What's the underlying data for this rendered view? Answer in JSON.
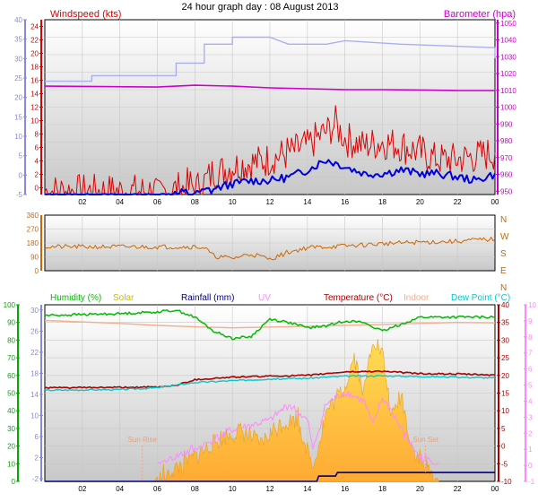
{
  "title": "24 hour graph day : 08 August 2013",
  "colors": {
    "wind": "#dd0000",
    "wind_blue": "#0000dd",
    "baro": "#cc00cc",
    "baro_light": "#aab0ee",
    "dir": "#cc6600",
    "humidity": "#00bb00",
    "solar": "#ccbb00",
    "rain": "#000080",
    "uv": "#ff88ff",
    "temp": "#aa0000",
    "indoor": "#f0b090",
    "dew": "#00cccc",
    "left_axis_1": "#8888dd",
    "left_axis_3": "#00aa00"
  },
  "chart_data": [
    {
      "type": "line",
      "name": "wind-barometer",
      "x_ticks": [
        "02",
        "04",
        "06",
        "08",
        "10",
        "12",
        "14",
        "16",
        "18",
        "20",
        "22",
        "00"
      ],
      "axes": {
        "left_outer": {
          "ticks": [
            -5,
            0,
            5,
            10,
            15,
            20,
            25,
            30,
            35,
            40
          ]
        },
        "left_inner": {
          "label": "Windspeed (kts)",
          "ticks": [
            0,
            2,
            4,
            6,
            8,
            10,
            12,
            14,
            16,
            18,
            20,
            22,
            24
          ]
        },
        "right": {
          "label": "Barometer (hpa)",
          "ticks": [
            950,
            960,
            970,
            980,
            990,
            1000,
            1010,
            1020,
            1030,
            1040,
            1050
          ]
        }
      },
      "series": [
        {
          "name": "Windspeed",
          "points": [
            [
              0,
              0.5
            ],
            [
              2,
              0.5
            ],
            [
              4,
              0.5
            ],
            [
              6,
              0.5
            ],
            [
              8,
              1
            ],
            [
              8.5,
              2
            ],
            [
              9,
              3
            ],
            [
              10,
              4
            ],
            [
              11,
              4.5
            ],
            [
              12,
              5
            ],
            [
              13,
              6
            ],
            [
              14,
              7
            ],
            [
              14.5,
              8
            ],
            [
              15,
              9
            ],
            [
              15.5,
              10
            ],
            [
              16,
              8
            ],
            [
              17,
              7
            ],
            [
              18,
              7.5
            ],
            [
              19,
              7
            ],
            [
              20,
              6
            ],
            [
              21,
              5
            ],
            [
              22,
              5
            ],
            [
              23,
              5.5
            ],
            [
              24,
              6
            ]
          ]
        },
        {
          "name": "Wind average",
          "points": [
            [
              0,
              0
            ],
            [
              6,
              0
            ],
            [
              8,
              0.2
            ],
            [
              9,
              0.8
            ],
            [
              10,
              1.5
            ],
            [
              11,
              2
            ],
            [
              12,
              2
            ],
            [
              13,
              2.5
            ],
            [
              14,
              3.5
            ],
            [
              15,
              5
            ],
            [
              16,
              4
            ],
            [
              17,
              3
            ],
            [
              18,
              3
            ],
            [
              19,
              3.5
            ],
            [
              20,
              3
            ],
            [
              21,
              3
            ],
            [
              22,
              2.5
            ],
            [
              23,
              2
            ],
            [
              24,
              3
            ]
          ]
        },
        {
          "name": "Barometer",
          "points": [
            [
              0,
              1012
            ],
            [
              6,
              1011.5
            ],
            [
              8,
              1012.5
            ],
            [
              10,
              1012
            ],
            [
              12,
              1011
            ],
            [
              14,
              1010.5
            ],
            [
              16,
              1010
            ],
            [
              18,
              1010
            ],
            [
              20,
              1009.8
            ],
            [
              22,
              1009.5
            ],
            [
              24,
              1009.5
            ]
          ]
        },
        {
          "name": "Barometer light",
          "points": [
            [
              0,
              16.2
            ],
            [
              2.5,
              16.2
            ],
            [
              2.5,
              17
            ],
            [
              7,
              17
            ],
            [
              7,
              18.8
            ],
            [
              8.5,
              18.8
            ],
            [
              8.5,
              21.5
            ],
            [
              10,
              21.5
            ],
            [
              10,
              22.5
            ],
            [
              12,
              22.5
            ],
            [
              13,
              21.5
            ],
            [
              15,
              21.5
            ],
            [
              16,
              22
            ],
            [
              19,
              21.5
            ],
            [
              24,
              21
            ],
            [
              24,
              19.5
            ]
          ]
        }
      ]
    },
    {
      "type": "line",
      "name": "wind-direction",
      "axes": {
        "left": {
          "ticks": [
            0,
            90,
            180,
            270,
            360
          ]
        },
        "right": {
          "labels": [
            "N",
            "W",
            "S",
            "E",
            "N"
          ]
        }
      },
      "series": [
        {
          "name": "Direction",
          "points": [
            [
              0,
              155
            ],
            [
              8,
              155
            ],
            [
              8.5,
              150
            ],
            [
              9,
              95
            ],
            [
              10,
              80
            ],
            [
              11,
              110
            ],
            [
              12,
              75
            ],
            [
              13,
              120
            ],
            [
              14,
              150
            ],
            [
              16,
              160
            ],
            [
              18,
              175
            ],
            [
              20,
              185
            ],
            [
              22,
              190
            ],
            [
              23,
              200
            ],
            [
              24,
              205
            ]
          ]
        }
      ]
    },
    {
      "type": "line",
      "name": "humidity-temperature-solar",
      "legend": {
        "humidity": "Humidity  (%)",
        "solar": "Solar",
        "rainfall": "Rainfall (mm)",
        "uv": "UV",
        "temperature": "Temperature (°C)",
        "indoor": "Indoor",
        "dew": "Dew Point (°C)"
      },
      "axes": {
        "left_outer": {
          "ticks": [
            0,
            10,
            20,
            30,
            40,
            50,
            60,
            70,
            80,
            90,
            100
          ]
        },
        "left_inner": {
          "ticks": [
            -2,
            2,
            6,
            10,
            14,
            18,
            22,
            26,
            30
          ]
        },
        "right_inner": {
          "ticks": [
            -10,
            -5,
            0,
            5,
            10,
            15,
            20,
            25,
            30,
            35,
            40
          ]
        },
        "right_outer": {
          "ticks": [
            -1,
            0,
            1,
            2,
            3,
            4,
            5,
            6,
            7,
            8,
            9,
            10
          ]
        }
      },
      "annotations": [
        {
          "text": "Sun Rise",
          "x": 5.2
        },
        {
          "text": "Sun Set",
          "x": 20.3
        }
      ],
      "series": [
        {
          "name": "Humidity",
          "points": [
            [
              0,
              94
            ],
            [
              4,
              95
            ],
            [
              6,
              96
            ],
            [
              7,
              97
            ],
            [
              8,
              93
            ],
            [
              9,
              85
            ],
            [
              10,
              81
            ],
            [
              11,
              82
            ],
            [
              12,
              92
            ],
            [
              13,
              90
            ],
            [
              14,
              87
            ],
            [
              15,
              88
            ],
            [
              16,
              91
            ],
            [
              17,
              90
            ],
            [
              18,
              85
            ],
            [
              19,
              89
            ],
            [
              20,
              93
            ],
            [
              22,
              93
            ],
            [
              24,
              93
            ]
          ]
        },
        {
          "name": "Indoor",
          "points": [
            [
              0,
              28.8
            ],
            [
              4,
              28.2
            ],
            [
              6,
              27.8
            ],
            [
              8,
              27.5
            ],
            [
              10,
              27.3
            ],
            [
              14,
              27.6
            ],
            [
              18,
              28
            ],
            [
              22,
              28.4
            ],
            [
              24,
              28.3
            ]
          ]
        },
        {
          "name": "Temperature",
          "points": [
            [
              0,
              16.5
            ],
            [
              4,
              16.6
            ],
            [
              6,
              16.7
            ],
            [
              7,
              17.2
            ],
            [
              8,
              18.8
            ],
            [
              10,
              19.5
            ],
            [
              12,
              19.8
            ],
            [
              14,
              20
            ],
            [
              16,
              21
            ],
            [
              18,
              21.2
            ],
            [
              20,
              20.5
            ],
            [
              22,
              20.4
            ],
            [
              24,
              20.1
            ]
          ]
        },
        {
          "name": "Dew Point",
          "points": [
            [
              0,
              15.8
            ],
            [
              4,
              16
            ],
            [
              6,
              16.5
            ],
            [
              8,
              18
            ],
            [
              10,
              18.5
            ],
            [
              12,
              19
            ],
            [
              14,
              19.2
            ],
            [
              16,
              19.8
            ],
            [
              18,
              19.9
            ],
            [
              20,
              19.7
            ],
            [
              22,
              19.5
            ],
            [
              24,
              19.3
            ]
          ]
        },
        {
          "name": "Solar",
          "points": [
            [
              5.8,
              0
            ],
            [
              6.5,
              1
            ],
            [
              7.5,
              3
            ],
            [
              8.5,
              5
            ],
            [
              9.5,
              7
            ],
            [
              10.5,
              8
            ],
            [
              11.5,
              6
            ],
            [
              12.5,
              9
            ],
            [
              13.5,
              10
            ],
            [
              14.3,
              2
            ],
            [
              15,
              11
            ],
            [
              16,
              15
            ],
            [
              16.5,
              20
            ],
            [
              17,
              14
            ],
            [
              17.5,
              23
            ],
            [
              18,
              20
            ],
            [
              18.5,
              10
            ],
            [
              19,
              14
            ],
            [
              19.5,
              6
            ],
            [
              20,
              3
            ],
            [
              21,
              0
            ]
          ]
        },
        {
          "name": "UV",
          "points": [
            [
              6,
              0.1
            ],
            [
              8,
              1
            ],
            [
              10,
              2.2
            ],
            [
              12,
              2.8
            ],
            [
              13,
              3.8
            ],
            [
              14,
              2.8
            ],
            [
              14.3,
              1
            ],
            [
              15,
              3.8
            ],
            [
              16,
              4.6
            ],
            [
              17,
              4
            ],
            [
              17.5,
              2.5
            ],
            [
              18,
              4.2
            ],
            [
              18.5,
              3.4
            ],
            [
              19,
              2.2
            ],
            [
              20,
              0.5
            ],
            [
              21,
              0.1
            ]
          ]
        },
        {
          "name": "Rainfall",
          "points": [
            [
              0,
              0
            ],
            [
              14.5,
              0
            ],
            [
              14.6,
              0.3
            ],
            [
              15.5,
              0.3
            ],
            [
              15.6,
              0.5
            ],
            [
              24,
              0.5
            ]
          ]
        }
      ]
    }
  ]
}
